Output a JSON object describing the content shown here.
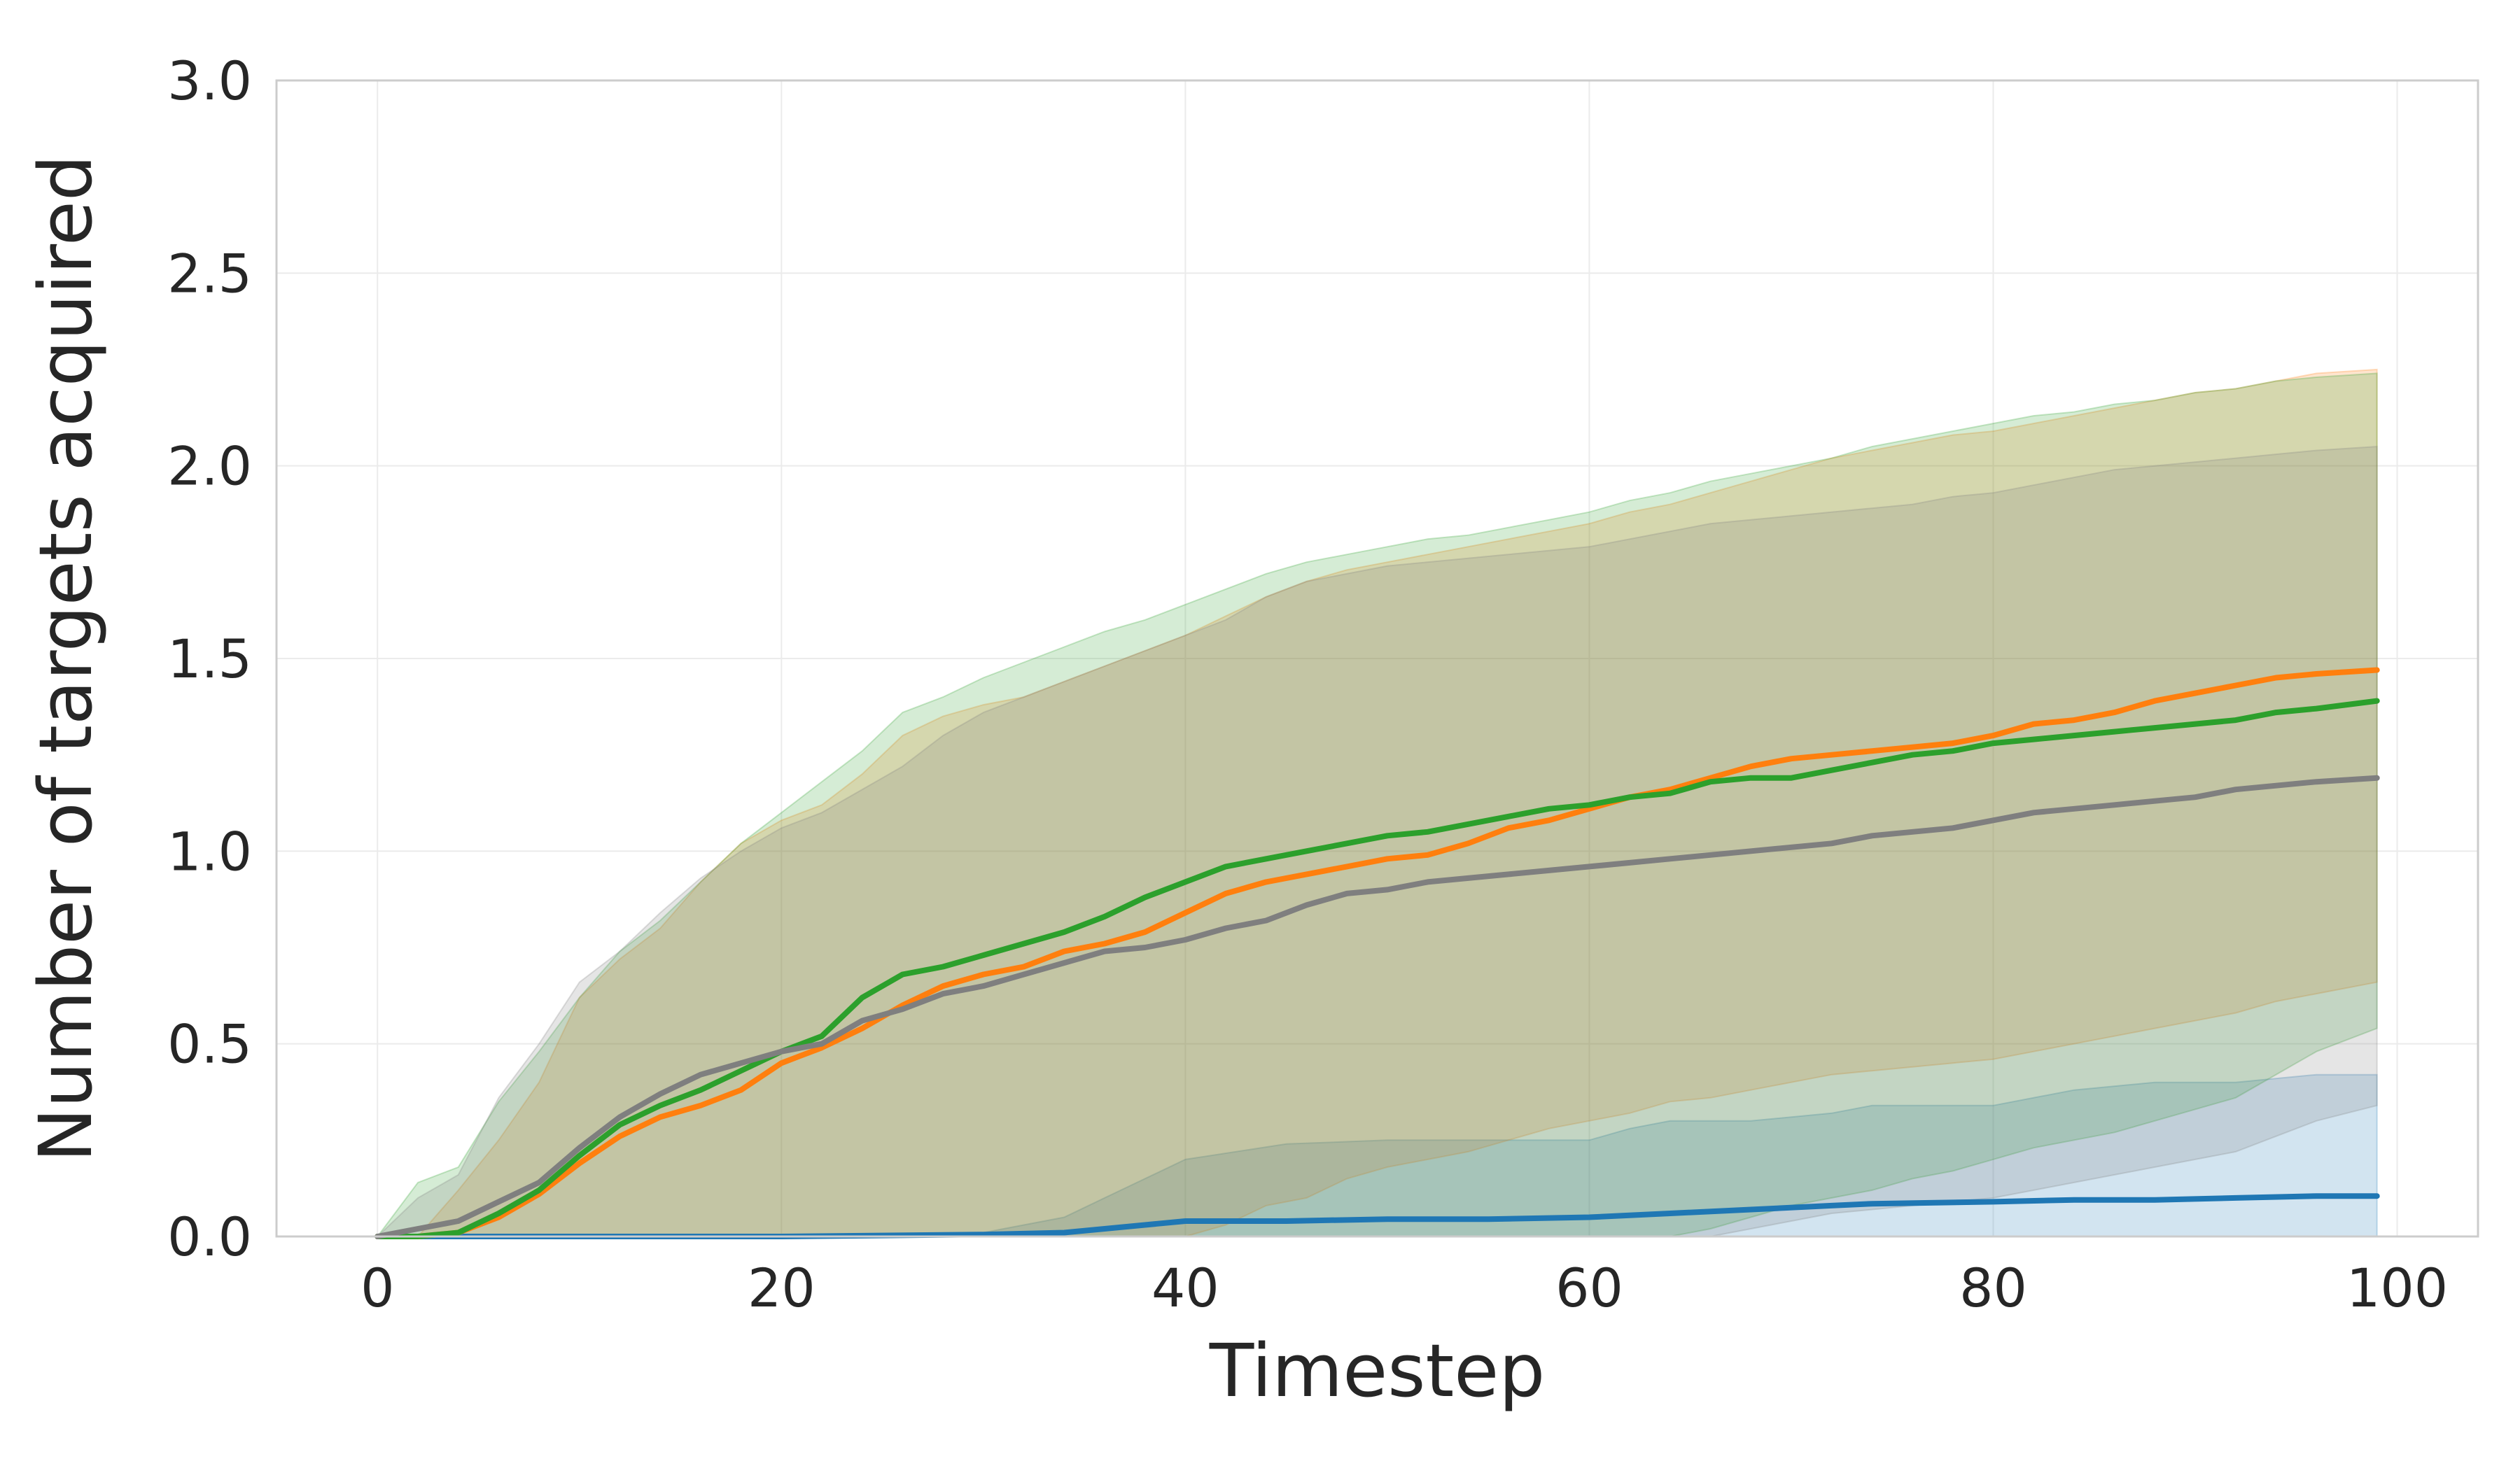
{
  "chart_data": {
    "type": "line",
    "title": "",
    "xlabel": "Timestep",
    "ylabel": "Number of targets acquired",
    "xlim": [
      -5,
      104
    ],
    "ylim": [
      0,
      3.0
    ],
    "x_ticks": [
      0,
      20,
      40,
      60,
      80,
      100
    ],
    "x_tick_labels": [
      "0",
      "20",
      "40",
      "60",
      "80",
      "100"
    ],
    "y_ticks": [
      0,
      0.5,
      1.0,
      1.5,
      2.0,
      2.5,
      3.0
    ],
    "y_tick_labels": [
      "0.0",
      "0.5",
      "1.0",
      "1.5",
      "2.0",
      "2.5",
      "3.0"
    ],
    "grid": true,
    "legend": "none",
    "series": [
      {
        "color": "#1f77b4",
        "x": [
          0,
          2,
          4,
          10,
          20,
          30,
          34,
          36,
          38,
          40,
          45,
          50,
          55,
          60,
          62,
          64,
          68,
          72,
          74,
          80,
          84,
          88,
          92,
          96,
          99
        ],
        "mean": [
          0,
          0,
          0,
          0,
          0,
          0.005,
          0.01,
          0.02,
          0.03,
          0.04,
          0.04,
          0.045,
          0.045,
          0.05,
          0.055,
          0.06,
          0.07,
          0.08,
          0.085,
          0.09,
          0.095,
          0.095,
          0.1,
          0.105,
          0.105
        ],
        "upper": [
          0,
          0,
          0,
          0,
          0,
          0.01,
          0.05,
          0.1,
          0.15,
          0.2,
          0.24,
          0.25,
          0.25,
          0.25,
          0.28,
          0.3,
          0.3,
          0.32,
          0.34,
          0.34,
          0.38,
          0.4,
          0.4,
          0.42,
          0.42
        ],
        "lower": [
          0,
          0,
          0,
          0,
          0,
          0,
          0,
          0,
          0,
          0,
          0,
          0,
          0,
          0,
          0,
          0,
          0,
          0,
          0,
          0,
          0,
          0,
          0,
          0,
          0
        ]
      },
      {
        "color": "#ff7f0e",
        "x": [
          0,
          2,
          4,
          6,
          8,
          10,
          12,
          14,
          16,
          18,
          20,
          22,
          24,
          26,
          28,
          30,
          32,
          34,
          36,
          38,
          40,
          42,
          44,
          46,
          48,
          50,
          52,
          54,
          56,
          58,
          60,
          62,
          64,
          66,
          68,
          70,
          72,
          74,
          76,
          78,
          80,
          82,
          84,
          86,
          88,
          90,
          92,
          94,
          96,
          99
        ],
        "mean": [
          0,
          0,
          0.01,
          0.05,
          0.11,
          0.19,
          0.26,
          0.31,
          0.34,
          0.38,
          0.45,
          0.49,
          0.54,
          0.6,
          0.65,
          0.68,
          0.7,
          0.74,
          0.76,
          0.79,
          0.84,
          0.89,
          0.92,
          0.94,
          0.96,
          0.98,
          0.99,
          1.02,
          1.06,
          1.08,
          1.11,
          1.14,
          1.16,
          1.19,
          1.22,
          1.24,
          1.25,
          1.26,
          1.27,
          1.28,
          1.3,
          1.33,
          1.34,
          1.36,
          1.39,
          1.41,
          1.43,
          1.45,
          1.46,
          1.47
        ],
        "upper": [
          0,
          0,
          0.12,
          0.25,
          0.4,
          0.62,
          0.72,
          0.8,
          0.92,
          1.02,
          1.08,
          1.12,
          1.2,
          1.3,
          1.35,
          1.38,
          1.4,
          1.44,
          1.48,
          1.52,
          1.56,
          1.61,
          1.66,
          1.7,
          1.73,
          1.75,
          1.77,
          1.79,
          1.81,
          1.83,
          1.85,
          1.88,
          1.9,
          1.93,
          1.96,
          1.99,
          2.02,
          2.04,
          2.06,
          2.08,
          2.09,
          2.11,
          2.13,
          2.15,
          2.17,
          2.19,
          2.2,
          2.22,
          2.24,
          2.25
        ],
        "lower": [
          0,
          0,
          0,
          0,
          0,
          0,
          0,
          0,
          0,
          0,
          0,
          0,
          0,
          0,
          0,
          0,
          0,
          0,
          0,
          0,
          0,
          0.03,
          0.08,
          0.1,
          0.15,
          0.18,
          0.2,
          0.22,
          0.25,
          0.28,
          0.3,
          0.32,
          0.35,
          0.36,
          0.38,
          0.4,
          0.42,
          0.43,
          0.44,
          0.45,
          0.46,
          0.48,
          0.5,
          0.52,
          0.54,
          0.56,
          0.58,
          0.61,
          0.63,
          0.66
        ]
      },
      {
        "color": "#2ca02c",
        "x": [
          0,
          2,
          4,
          6,
          8,
          10,
          12,
          14,
          16,
          18,
          20,
          22,
          24,
          26,
          28,
          30,
          32,
          34,
          36,
          38,
          40,
          42,
          44,
          46,
          48,
          50,
          52,
          54,
          56,
          58,
          60,
          62,
          64,
          66,
          68,
          70,
          72,
          74,
          76,
          78,
          80,
          82,
          84,
          86,
          88,
          90,
          92,
          94,
          96,
          99
        ],
        "mean": [
          0,
          0,
          0.01,
          0.06,
          0.12,
          0.21,
          0.29,
          0.34,
          0.38,
          0.43,
          0.48,
          0.52,
          0.62,
          0.68,
          0.7,
          0.73,
          0.76,
          0.79,
          0.83,
          0.88,
          0.92,
          0.96,
          0.98,
          1.0,
          1.02,
          1.04,
          1.05,
          1.07,
          1.09,
          1.11,
          1.12,
          1.14,
          1.15,
          1.18,
          1.19,
          1.19,
          1.21,
          1.23,
          1.25,
          1.26,
          1.28,
          1.29,
          1.3,
          1.31,
          1.32,
          1.33,
          1.34,
          1.36,
          1.37,
          1.39
        ],
        "upper": [
          0,
          0.14,
          0.18,
          0.35,
          0.48,
          0.62,
          0.74,
          0.82,
          0.92,
          1.02,
          1.1,
          1.18,
          1.26,
          1.36,
          1.4,
          1.45,
          1.49,
          1.53,
          1.57,
          1.6,
          1.64,
          1.68,
          1.72,
          1.75,
          1.77,
          1.79,
          1.81,
          1.82,
          1.84,
          1.86,
          1.88,
          1.91,
          1.93,
          1.96,
          1.98,
          2.0,
          2.02,
          2.05,
          2.07,
          2.09,
          2.11,
          2.13,
          2.14,
          2.16,
          2.17,
          2.19,
          2.2,
          2.22,
          2.23,
          2.24
        ],
        "lower": [
          0,
          0,
          0,
          0,
          0,
          0,
          0,
          0,
          0,
          0,
          0,
          0,
          0,
          0,
          0,
          0,
          0,
          0,
          0,
          0,
          0,
          0,
          0,
          0,
          0,
          0,
          0,
          0,
          0,
          0,
          0,
          0,
          0,
          0.02,
          0.05,
          0.08,
          0.1,
          0.12,
          0.15,
          0.17,
          0.2,
          0.23,
          0.25,
          0.27,
          0.3,
          0.33,
          0.36,
          0.42,
          0.48,
          0.54
        ]
      },
      {
        "color": "#7f7f7f",
        "x": [
          0,
          2,
          4,
          6,
          8,
          10,
          12,
          14,
          16,
          18,
          20,
          22,
          24,
          26,
          28,
          30,
          32,
          34,
          36,
          38,
          40,
          42,
          44,
          46,
          48,
          50,
          52,
          54,
          56,
          58,
          60,
          62,
          64,
          66,
          68,
          70,
          72,
          74,
          76,
          78,
          80,
          82,
          84,
          86,
          88,
          90,
          92,
          94,
          96,
          99
        ],
        "mean": [
          0,
          0.02,
          0.04,
          0.09,
          0.14,
          0.23,
          0.31,
          0.37,
          0.42,
          0.45,
          0.48,
          0.5,
          0.56,
          0.59,
          0.63,
          0.65,
          0.68,
          0.71,
          0.74,
          0.75,
          0.77,
          0.8,
          0.82,
          0.86,
          0.89,
          0.9,
          0.92,
          0.93,
          0.94,
          0.95,
          0.96,
          0.97,
          0.98,
          0.99,
          1.0,
          1.01,
          1.02,
          1.04,
          1.05,
          1.06,
          1.08,
          1.1,
          1.11,
          1.12,
          1.13,
          1.14,
          1.16,
          1.17,
          1.18,
          1.19
        ],
        "upper": [
          0,
          0.1,
          0.16,
          0.36,
          0.5,
          0.66,
          0.74,
          0.84,
          0.93,
          1.0,
          1.06,
          1.1,
          1.16,
          1.22,
          1.3,
          1.36,
          1.4,
          1.44,
          1.48,
          1.52,
          1.56,
          1.6,
          1.66,
          1.7,
          1.72,
          1.74,
          1.75,
          1.76,
          1.77,
          1.78,
          1.79,
          1.81,
          1.83,
          1.85,
          1.86,
          1.87,
          1.88,
          1.89,
          1.9,
          1.92,
          1.93,
          1.95,
          1.97,
          1.99,
          2.0,
          2.01,
          2.02,
          2.03,
          2.04,
          2.05
        ],
        "lower": [
          0,
          0,
          0,
          0,
          0,
          0,
          0,
          0,
          0,
          0,
          0,
          0,
          0,
          0,
          0,
          0,
          0,
          0,
          0,
          0,
          0,
          0,
          0,
          0,
          0,
          0,
          0,
          0,
          0,
          0,
          0,
          0,
          0,
          0,
          0.02,
          0.04,
          0.06,
          0.07,
          0.08,
          0.09,
          0.1,
          0.12,
          0.14,
          0.16,
          0.18,
          0.2,
          0.22,
          0.26,
          0.3,
          0.34
        ]
      }
    ]
  }
}
